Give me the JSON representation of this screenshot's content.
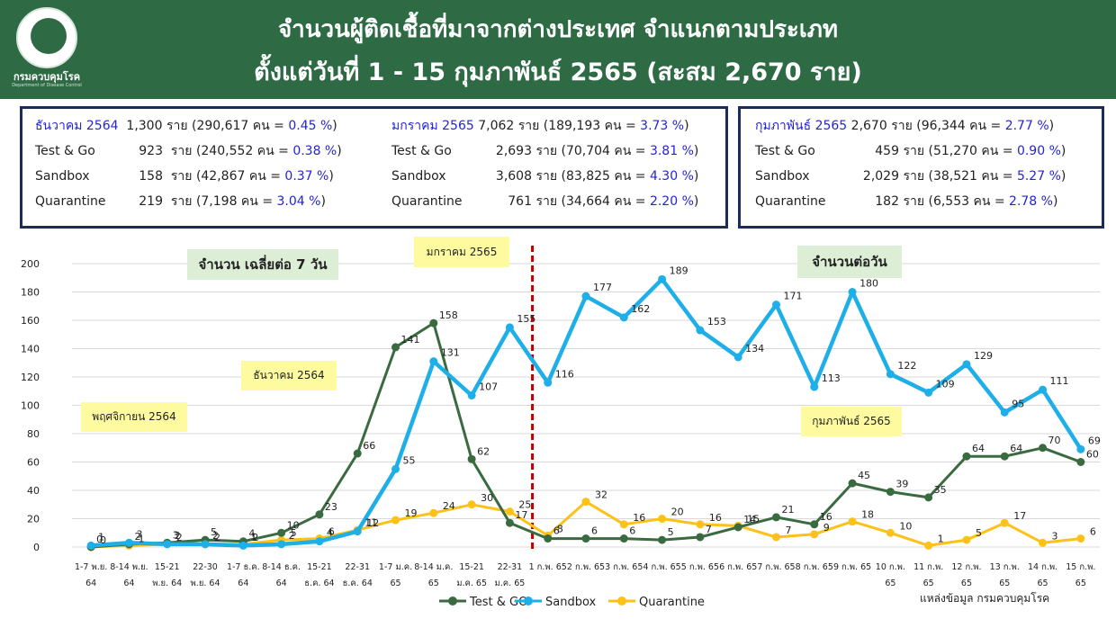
{
  "header": {
    "logo_text": "กรมควบคุมโรค",
    "logo_subtext": "Department of Disease Control",
    "title_line1": "จำนวนผู้ติดเชื้อที่มาจากต่างประเทศ จำแนกตามประเภท",
    "title_line2": "ตั้งแต่วันที่  1 - 15  กุมภาพันธ์  2565 (สะสม 2,670 ราย)"
  },
  "summary": {
    "dec": {
      "head_label": "ธันวาคม 2564",
      "head_total": "1,300 ราย (290,617 คน = ",
      "head_pct": "0.45 %",
      "head_close": ")",
      "rows": [
        {
          "label": "Test & Go",
          "num": "923",
          "detail": "ราย (240,552 คน = ",
          "pct": "0.38 %",
          "close": ")"
        },
        {
          "label": "Sandbox",
          "num": "158",
          "detail": "ราย (42,867 คน   = ",
          "pct": "0.37 %",
          "close": ")"
        },
        {
          "label": "Quarantine",
          "num": "219",
          "detail": "ราย (7,198 คน     = ",
          "pct": "3.04 %",
          "close": ")"
        }
      ]
    },
    "jan": {
      "head_label": "มกราคม 2565",
      "head_total": "7,062 ราย (189,193 คน = ",
      "head_pct": "3.73 %",
      "head_close": ")",
      "rows": [
        {
          "label": "Test & Go",
          "num": "2,693",
          "detail": "ราย (70,704 คน = ",
          "pct": "3.81 %",
          "close": ")"
        },
        {
          "label": "Sandbox",
          "num": "3,608",
          "detail": "ราย (83,825 คน = ",
          "pct": "4.30 %",
          "close": ")"
        },
        {
          "label": "Quarantine",
          "num": "761",
          "detail": "ราย (34,664 คน = ",
          "pct": "2.20 %",
          "close": ")"
        }
      ]
    },
    "feb": {
      "head_label": "กุมภาพันธ์ 2565",
      "head_total": "2,670 ราย (96,344 คน   = ",
      "head_pct": "2.77 %",
      "head_close": ")",
      "rows": [
        {
          "label": "Test & Go",
          "num": "459",
          "detail": "ราย (51,270 คน   = ",
          "pct": "0.90 %",
          "close": ")"
        },
        {
          "label": "Sandbox",
          "num": "2,029",
          "detail": "ราย (38,521 คน   = ",
          "pct": "5.27 %",
          "close": ")"
        },
        {
          "label": "Quarantine",
          "num": "182",
          "detail": "ราย (6,553 คน     = ",
          "pct": "2.78 %",
          "close": ")"
        }
      ]
    }
  },
  "annotations": {
    "avg_label": "จำนวน เฉลี่ยต่อ 7 วัน",
    "daily_label": "จำนวนต่อวัน",
    "nov": "พฤศจิกายน 2564",
    "dec": "ธันวาคม 2564",
    "jan": "มกราคม 2565",
    "feb": "กุมภาพันธ์ 2565"
  },
  "source": "แหล่งข้อมูล กรมควบคุมโรค",
  "colors": {
    "test_go": "#3a6b40",
    "sandbox": "#1eaee8",
    "quarantine": "#fdc118",
    "header_bg": "#2e6b45",
    "divider": "#c00000"
  },
  "chart_data": {
    "type": "line",
    "ylim": [
      0,
      200
    ],
    "y_ticks": [
      0,
      20,
      40,
      60,
      80,
      100,
      120,
      140,
      160,
      180,
      200
    ],
    "grid": true,
    "legend_position": "bottom",
    "categories": [
      {
        "l1": "1-7 พ.ย.",
        "l2": "64"
      },
      {
        "l1": "8-14 พ.ย.",
        "l2": "64"
      },
      {
        "l1": "15-21",
        "l2": "พ.ย. 64"
      },
      {
        "l1": "22-30",
        "l2": "พ.ย. 64"
      },
      {
        "l1": "1-7 ธ.ค.",
        "l2": "64"
      },
      {
        "l1": "8-14 ธ.ค.",
        "l2": "64"
      },
      {
        "l1": "15-21",
        "l2": "ธ.ค. 64"
      },
      {
        "l1": "22-31",
        "l2": "ธ.ค. 64"
      },
      {
        "l1": "1-7 ม.ค.",
        "l2": "65"
      },
      {
        "l1": "8-14 ม.ค.",
        "l2": "65"
      },
      {
        "l1": "15-21",
        "l2": "ม.ค. 65"
      },
      {
        "l1": "22-31",
        "l2": "ม.ค. 65"
      },
      {
        "l1": "1 ก.พ. 65",
        "l2": ""
      },
      {
        "l1": "2 ก.พ. 65",
        "l2": ""
      },
      {
        "l1": "3 ก.พ. 65",
        "l2": ""
      },
      {
        "l1": "4 ก.พ. 65",
        "l2": ""
      },
      {
        "l1": "5 ก.พ. 65",
        "l2": ""
      },
      {
        "l1": "6 ก.พ. 65",
        "l2": ""
      },
      {
        "l1": "7 ก.พ. 65",
        "l2": ""
      },
      {
        "l1": "8 ก.พ. 65",
        "l2": ""
      },
      {
        "l1": "9 ก.พ. 65",
        "l2": ""
      },
      {
        "l1": "10 ก.พ.",
        "l2": "65"
      },
      {
        "l1": "11 ก.พ.",
        "l2": "65"
      },
      {
        "l1": "12 ก.พ.",
        "l2": "65"
      },
      {
        "l1": "13 ก.พ.",
        "l2": "65"
      },
      {
        "l1": "14 ก.พ.",
        "l2": "65"
      },
      {
        "l1": "15 ก.พ.",
        "l2": "65"
      }
    ],
    "series": [
      {
        "name": "Test & GO",
        "key": "test_go",
        "values": [
          0,
          2,
          3,
          5,
          4,
          10,
          23,
          66,
          141,
          158,
          62,
          17,
          6,
          6,
          6,
          5,
          7,
          14,
          21,
          16,
          45,
          39,
          35,
          64,
          64,
          70,
          60
        ],
        "labels": [
          "0",
          "2",
          "3",
          "5",
          "4",
          "10",
          "23",
          "66",
          "141",
          "158",
          "62",
          "17",
          "6",
          "6",
          "6",
          "5",
          "7",
          "14",
          "21",
          "16",
          "45",
          "39",
          "35",
          "64",
          "64",
          "70",
          "60"
        ]
      },
      {
        "name": "Sandbox",
        "key": "sandbox",
        "values": [
          1,
          3,
          2,
          2,
          1,
          2,
          4,
          11,
          55,
          131,
          107,
          155,
          116,
          177,
          162,
          189,
          153,
          134,
          171,
          113,
          180,
          122,
          109,
          129,
          95,
          111,
          69
        ],
        "labels": [
          "1",
          "3",
          "2",
          "2",
          "1",
          "2",
          "4",
          "11",
          "55",
          "131",
          "107",
          "155",
          "116",
          "177",
          "162",
          "189",
          "153",
          "134",
          "171",
          "113",
          "180",
          "122",
          "109",
          "129",
          "95",
          "111",
          "69"
        ]
      },
      {
        "name": "Quarantine",
        "key": "quarantine",
        "values": [
          0,
          1,
          2,
          2,
          2,
          5,
          6,
          12,
          19,
          24,
          30,
          25,
          8,
          32,
          16,
          20,
          16,
          15,
          7,
          9,
          18,
          10,
          1,
          5,
          17,
          3,
          6
        ],
        "labels": [
          "0",
          "1",
          "2",
          "2",
          "2",
          "5",
          "6",
          "12",
          "19",
          "24",
          "30",
          "25",
          "8",
          "32",
          "16",
          "20",
          "16",
          "15",
          "7",
          "9",
          "18",
          "10",
          "1",
          "5",
          "17",
          "3",
          "6"
        ]
      }
    ]
  }
}
